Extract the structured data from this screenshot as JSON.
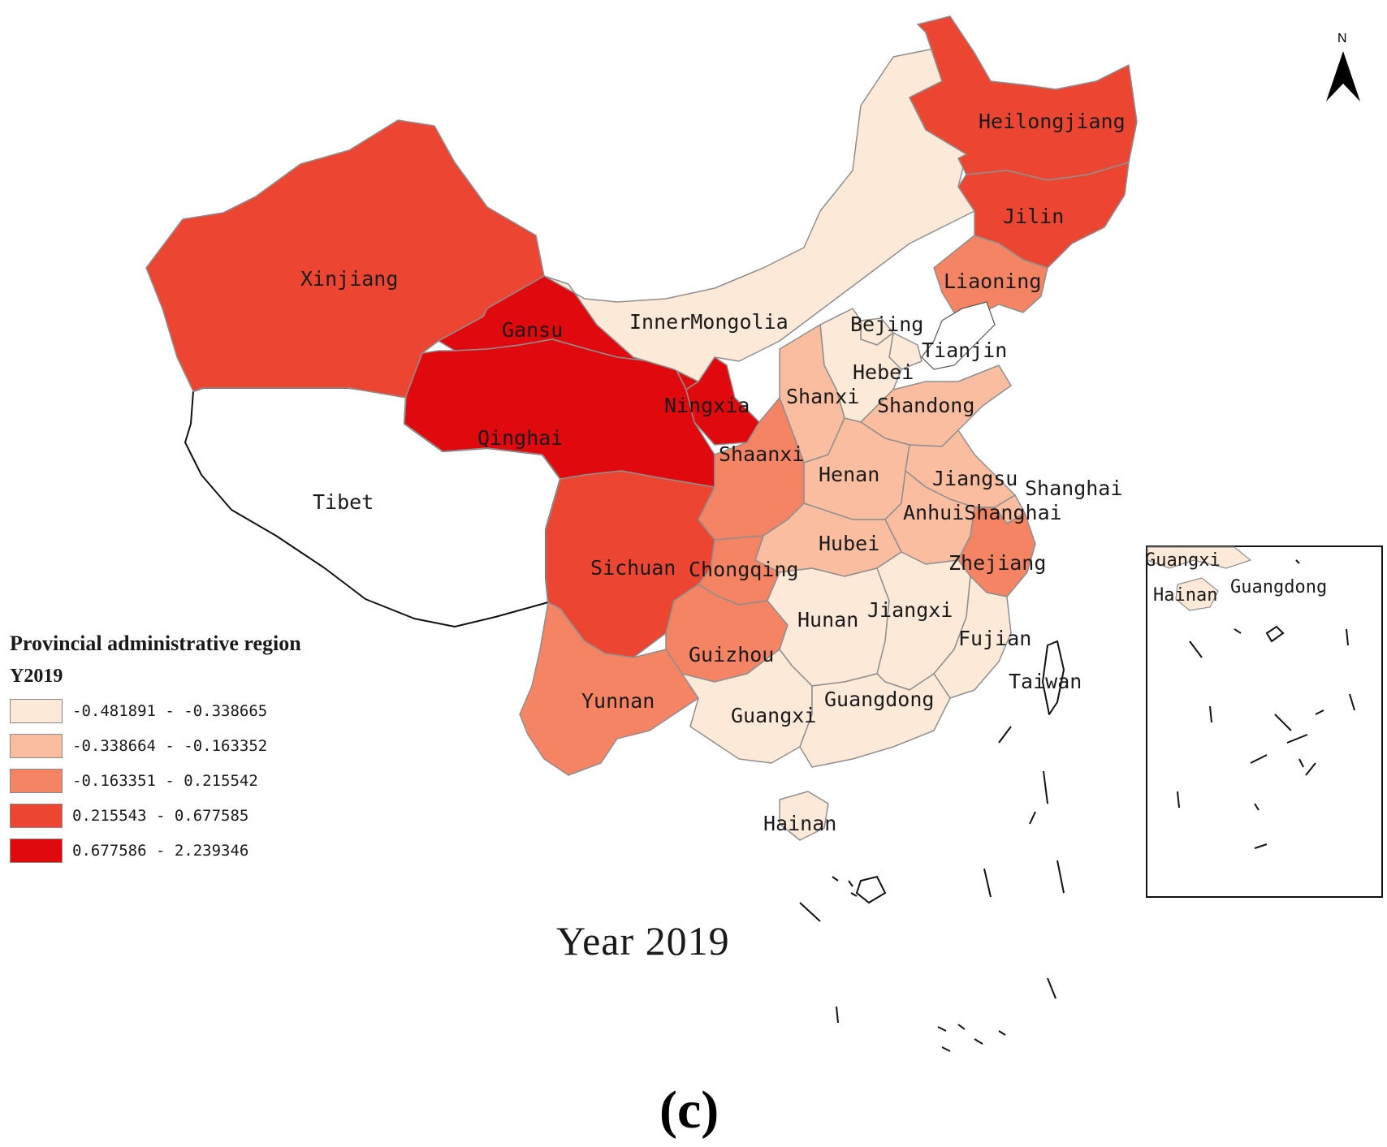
{
  "legend": {
    "title": "Provincial administrative region",
    "field": "Y2019",
    "classes": [
      {
        "range": "-0.481891 - -0.338665",
        "color": "#fde9d8"
      },
      {
        "range": "-0.338664 - -0.163352",
        "color": "#fbbd9f"
      },
      {
        "range": "-0.163351 - 0.215542",
        "color": "#f58465"
      },
      {
        "range": "0.215543 - 0.677585",
        "color": "#ec4632"
      },
      {
        "range": "0.677586 - 2.239346",
        "color": "#e0090e"
      }
    ],
    "no_data_color": "#ffffff"
  },
  "map_title": "Year 2019",
  "panel_label": "(c)",
  "north_arrow": {
    "letter": "N",
    "icon": "north-arrow-icon"
  },
  "provinces": {
    "Heilongjiang": {
      "label": "Heilongjiang",
      "class": 3
    },
    "Jilin": {
      "label": "Jilin",
      "class": 3
    },
    "Liaoning": {
      "label": "Liaoning",
      "class": 2
    },
    "InnerMongolia": {
      "label": "InnerMongolia",
      "class": 0
    },
    "Beijing": {
      "label": "Bejing",
      "class": 0
    },
    "Tianjin": {
      "label": "Tianjin",
      "class": 0
    },
    "Hebei": {
      "label": "Hebei",
      "class": 0
    },
    "Shanxi": {
      "label": "Shanxi",
      "class": 1
    },
    "Shandong": {
      "label": "Shandong",
      "class": 1
    },
    "Xinjiang": {
      "label": "Xinjiang",
      "class": 3
    },
    "Gansu": {
      "label": "Gansu",
      "class": 4
    },
    "Qinghai": {
      "label": "Qinghai",
      "class": 4
    },
    "Ningxia": {
      "label": "Ningxia",
      "class": 4
    },
    "Shaanxi": {
      "label": "Shaanxi",
      "class": 2
    },
    "Tibet": {
      "label": "Tibet",
      "class": null
    },
    "Sichuan": {
      "label": "Sichuan",
      "class": 3
    },
    "Chongqing": {
      "label": "Chongqing",
      "class": 2
    },
    "Henan": {
      "label": "Henan",
      "class": 1
    },
    "Hubei": {
      "label": "Hubei",
      "class": 1
    },
    "Jiangsu": {
      "label": "Jiangsu",
      "class": 1
    },
    "Anhui": {
      "label": "Anhui",
      "class": 1
    },
    "Shanghai": {
      "label": "Shanghai",
      "class": 1
    },
    "Zhejiang": {
      "label": "Zhejiang",
      "class": 2
    },
    "Hunan": {
      "label": "Hunan",
      "class": 0
    },
    "Jiangxi": {
      "label": "Jiangxi",
      "class": 0
    },
    "Fujian": {
      "label": "Fujian",
      "class": 0
    },
    "Guizhou": {
      "label": "Guizhou",
      "class": 2
    },
    "Yunnan": {
      "label": "Yunnan",
      "class": 2
    },
    "Guangxi": {
      "label": "Guangxi",
      "class": 0
    },
    "Guangdong": {
      "label": "Guangdong",
      "class": 0
    },
    "Hainan": {
      "label": "Hainan",
      "class": 0
    },
    "Taiwan": {
      "label": "Taiwan",
      "class": null
    }
  },
  "extra_labels": {
    "shanghai_offshore": "Shanghai",
    "anhui_shanghai": "AnhuiShanghai"
  },
  "inset": {
    "guangxi": "Guangxi",
    "hainan": "Hainan",
    "guangdong": "Guangdong"
  }
}
